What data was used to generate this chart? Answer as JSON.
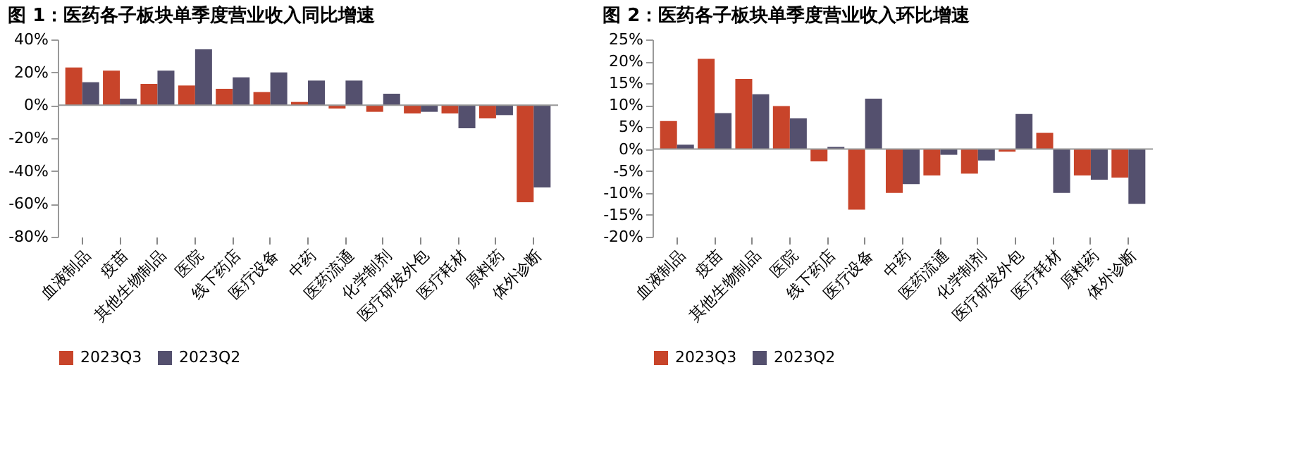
{
  "chart_data": [
    {
      "type": "bar",
      "title": "图 1：医药各子板块单季度营业收入同比增速",
      "categories": [
        "血液制品",
        "疫苗",
        "其他生物制品",
        "医院",
        "线下药店",
        "医疗设备",
        "中药",
        "医药流通",
        "化学制剂",
        "医疗研发外包",
        "医疗耗材",
        "原料药",
        "体外诊断"
      ],
      "series": [
        {
          "name": "2023Q3",
          "color": "#c8442a",
          "values": [
            23,
            21,
            13,
            12,
            10,
            8,
            2,
            -2,
            -4,
            -5,
            -5,
            -8,
            -59
          ]
        },
        {
          "name": "2023Q2",
          "color": "#54506e",
          "values": [
            14,
            4,
            21,
            34,
            17,
            20,
            15,
            15,
            7,
            -4,
            -14,
            -6,
            -50
          ]
        }
      ],
      "ylim": [
        -80,
        40
      ],
      "yticks": [
        {
          "value": -80,
          "label": "-80%"
        },
        {
          "value": -60,
          "label": "-60%"
        },
        {
          "value": -40,
          "label": "-40%"
        },
        {
          "value": -20,
          "label": "-20%"
        },
        {
          "value": 0,
          "label": "0%"
        },
        {
          "value": 20,
          "label": "20%"
        },
        {
          "value": 40,
          "label": "40%"
        }
      ],
      "grid": false,
      "legend": "bottom",
      "ref_lines": [
        {
          "axis": "y",
          "value": 0,
          "color": "#999999"
        }
      ]
    },
    {
      "type": "bar",
      "title": "图 2：医药各子板块单季度营业收入环比增速",
      "categories": [
        "血液制品",
        "疫苗",
        "其他生物制品",
        "医院",
        "线下药店",
        "医疗设备",
        "中药",
        "医药流通",
        "化学制剂",
        "医疗研发外包",
        "医疗耗材",
        "原料药",
        "体外诊断"
      ],
      "series": [
        {
          "name": "2023Q3",
          "color": "#c8442a",
          "values": [
            6.4,
            20.6,
            16,
            9.8,
            -2.8,
            -13.8,
            -10,
            -6,
            -5.6,
            -0.6,
            3.7,
            -6,
            -6.5
          ]
        },
        {
          "name": "2023Q2",
          "color": "#54506e",
          "values": [
            1,
            8.2,
            12.5,
            7,
            0.5,
            11.5,
            -8,
            -1.3,
            -2.6,
            8,
            -10,
            -7,
            -12.5
          ]
        }
      ],
      "ylim": [
        -20,
        25
      ],
      "yticks": [
        {
          "value": -20,
          "label": "-20%"
        },
        {
          "value": -15,
          "label": "-15%"
        },
        {
          "value": -10,
          "label": "-10%"
        },
        {
          "value": -5,
          "label": "-5%"
        },
        {
          "value": 0,
          "label": "0%"
        },
        {
          "value": 5,
          "label": "5%"
        },
        {
          "value": 10,
          "label": "10%"
        },
        {
          "value": 15,
          "label": "15%"
        },
        {
          "value": 20,
          "label": "20%"
        },
        {
          "value": 25,
          "label": "25%"
        }
      ],
      "grid": false,
      "legend": "bottom",
      "ref_lines": [
        {
          "axis": "y",
          "value": 0,
          "color": "#999999"
        }
      ]
    }
  ]
}
